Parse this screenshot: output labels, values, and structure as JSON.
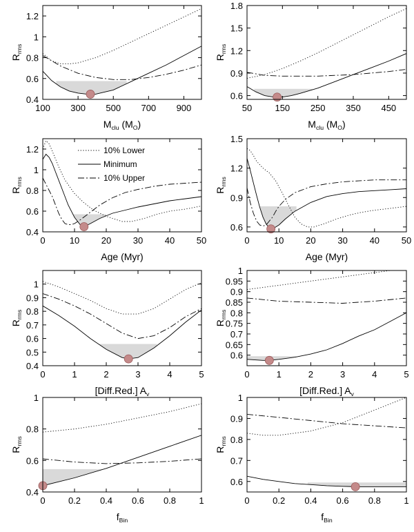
{
  "legend": {
    "entries": [
      {
        "label": "10% Lower",
        "style": "dotted"
      },
      {
        "label": "Minimum",
        "style": "solid"
      },
      {
        "label": "10% Upper",
        "style": "dashed"
      }
    ]
  },
  "colors": {
    "marker": "#c48a8a",
    "marker_edge": "#9a5a5a",
    "shade": "#d9d9d9",
    "axis": "#000000"
  },
  "chart_data": [
    {
      "type": "line",
      "xlabel": "M_clu (M_O)",
      "ylabel": "R_rms",
      "xlim": [
        100,
        1000
      ],
      "ylim": [
        0.4,
        1.3
      ],
      "xticks": [
        100,
        300,
        500,
        700,
        900
      ],
      "yticks": [
        0.4,
        0.6,
        0.8,
        1.0,
        1.2
      ],
      "xtick_labels": [
        "100",
        "300",
        "500",
        "700",
        "900"
      ],
      "ytick_labels": [
        "0.4",
        "0.6",
        "0.8",
        "1",
        "1.2"
      ],
      "series": [
        {
          "name": "10% Lower",
          "style": "dotted",
          "x": [
            100,
            150,
            200,
            250,
            300,
            400,
            500,
            600,
            700,
            800,
            900,
            1000
          ],
          "y": [
            0.84,
            0.77,
            0.74,
            0.74,
            0.75,
            0.8,
            0.87,
            0.95,
            1.03,
            1.11,
            1.19,
            1.27
          ]
        },
        {
          "name": "Minimum",
          "style": "solid",
          "x": [
            100,
            150,
            200,
            250,
            300,
            350,
            400,
            450,
            500,
            550,
            600,
            700,
            800,
            900,
            1000
          ],
          "y": [
            0.67,
            0.58,
            0.52,
            0.48,
            0.46,
            0.45,
            0.45,
            0.47,
            0.49,
            0.53,
            0.57,
            0.65,
            0.73,
            0.82,
            0.91
          ]
        },
        {
          "name": "10% Upper",
          "style": "dashed",
          "x": [
            100,
            200,
            300,
            400,
            500,
            600,
            700,
            800,
            900,
            1000
          ],
          "y": [
            0.82,
            0.72,
            0.65,
            0.61,
            0.59,
            0.59,
            0.61,
            0.64,
            0.68,
            0.73
          ]
        }
      ],
      "best_fit": {
        "x": 370,
        "y": 0.45
      },
      "shade": {
        "level": 0.575,
        "x_from": 176,
        "x_to": 576
      }
    },
    {
      "type": "line",
      "xlabel": "M_clu (M_O)",
      "ylabel": "R_rms",
      "xlim": [
        50,
        500
      ],
      "ylim": [
        0.55,
        1.8
      ],
      "xticks": [
        50,
        150,
        250,
        350,
        450
      ],
      "yticks": [
        0.6,
        0.9,
        1.2,
        1.5,
        1.8
      ],
      "xtick_labels": [
        "50",
        "150",
        "250",
        "350",
        "450"
      ],
      "ytick_labels": [
        "0.6",
        "0.9",
        "1.2",
        "1.5",
        "1.8"
      ],
      "series": [
        {
          "name": "10% Lower",
          "style": "dotted",
          "x": [
            50,
            100,
            150,
            200,
            250,
            300,
            350,
            400,
            450,
            500
          ],
          "y": [
            0.83,
            0.88,
            0.96,
            1.06,
            1.17,
            1.29,
            1.41,
            1.53,
            1.65,
            1.76
          ]
        },
        {
          "name": "Minimum",
          "style": "solid",
          "x": [
            50,
            75,
            100,
            125,
            150,
            175,
            200,
            250,
            300,
            350,
            400,
            450,
            500
          ],
          "y": [
            0.72,
            0.65,
            0.6,
            0.58,
            0.58,
            0.6,
            0.63,
            0.7,
            0.79,
            0.88,
            0.97,
            1.06,
            1.16
          ]
        },
        {
          "name": "10% Upper",
          "style": "dashed",
          "x": [
            50,
            100,
            150,
            200,
            250,
            300,
            350,
            400,
            450,
            500
          ],
          "y": [
            0.91,
            0.87,
            0.86,
            0.86,
            0.86,
            0.87,
            0.88,
            0.9,
            0.92,
            0.95
          ]
        }
      ],
      "best_fit": {
        "x": 135,
        "y": 0.58
      },
      "shade": {
        "level": 0.69,
        "x_from": 70,
        "x_to": 235
      }
    },
    {
      "type": "line",
      "xlabel": "Age (Myr)",
      "ylabel": "R_rms",
      "xlim": [
        0,
        50
      ],
      "ylim": [
        0.4,
        1.3
      ],
      "xticks": [
        0,
        10,
        20,
        30,
        40,
        50
      ],
      "yticks": [
        0.4,
        0.6,
        0.8,
        1.0,
        1.2
      ],
      "xtick_labels": [
        "0",
        "10",
        "20",
        "30",
        "40",
        "50"
      ],
      "ytick_labels": [
        "0.4",
        "0.6",
        "0.8",
        "1",
        "1.2"
      ],
      "series": [
        {
          "name": "10% Lower",
          "style": "dotted",
          "x": [
            0,
            1,
            2,
            3,
            5,
            7,
            10,
            13,
            16,
            20,
            25,
            28,
            32,
            36,
            40,
            45,
            50
          ],
          "y": [
            1.2,
            1.28,
            1.25,
            1.18,
            1.03,
            0.9,
            0.77,
            0.68,
            0.61,
            0.55,
            0.5,
            0.5,
            0.53,
            0.57,
            0.6,
            0.62,
            0.65
          ]
        },
        {
          "name": "Minimum",
          "style": "solid",
          "x": [
            0,
            1,
            2,
            3,
            4,
            6,
            8,
            10,
            12,
            13,
            15,
            18,
            22,
            26,
            30,
            35,
            40,
            45,
            50
          ],
          "y": [
            1.1,
            1.15,
            1.12,
            1.06,
            0.98,
            0.82,
            0.66,
            0.54,
            0.46,
            0.45,
            0.48,
            0.53,
            0.58,
            0.61,
            0.64,
            0.67,
            0.7,
            0.72,
            0.74
          ]
        },
        {
          "name": "10% Upper",
          "style": "dashed",
          "x": [
            0,
            1,
            2,
            3,
            4,
            5,
            6,
            7,
            8,
            9,
            10,
            12,
            15,
            18,
            22,
            26,
            30,
            35,
            40,
            45,
            50
          ],
          "y": [
            0.92,
            0.86,
            0.8,
            0.74,
            0.66,
            0.58,
            0.52,
            0.48,
            0.47,
            0.47,
            0.48,
            0.52,
            0.59,
            0.66,
            0.73,
            0.78,
            0.81,
            0.84,
            0.86,
            0.87,
            0.88
          ]
        }
      ],
      "best_fit": {
        "x": 13,
        "y": 0.45
      },
      "shade": {
        "level": 0.57,
        "x_from": 9.6,
        "x_to": 20
      }
    },
    {
      "type": "line",
      "xlabel": "Age (Myr)",
      "ylabel": "R_rms",
      "xlim": [
        0,
        50
      ],
      "ylim": [
        0.55,
        1.5
      ],
      "xticks": [
        0,
        10,
        20,
        30,
        40,
        50
      ],
      "yticks": [
        0.6,
        0.9,
        1.2,
        1.5
      ],
      "xtick_labels": [
        "0",
        "10",
        "20",
        "30",
        "40",
        "50"
      ],
      "ytick_labels": [
        "0.6",
        "0.9",
        "1.2",
        "1.5"
      ],
      "series": [
        {
          "name": "10% Lower",
          "style": "dotted",
          "x": [
            0,
            1,
            2,
            3,
            5,
            7,
            9,
            11,
            13,
            15,
            17,
            19,
            21,
            24,
            28,
            32,
            36,
            40,
            45,
            50
          ],
          "y": [
            1.4,
            1.38,
            1.33,
            1.27,
            1.2,
            1.15,
            1.07,
            0.95,
            0.82,
            0.7,
            0.63,
            0.6,
            0.6,
            0.63,
            0.68,
            0.72,
            0.75,
            0.77,
            0.79,
            0.81
          ]
        },
        {
          "name": "Minimum",
          "style": "solid",
          "x": [
            0,
            1,
            2,
            3,
            4,
            5,
            6,
            7,
            8,
            10,
            12,
            15,
            20,
            25,
            30,
            35,
            40,
            45,
            50
          ],
          "y": [
            1.3,
            1.18,
            1.05,
            0.92,
            0.8,
            0.7,
            0.63,
            0.59,
            0.58,
            0.62,
            0.68,
            0.76,
            0.85,
            0.91,
            0.94,
            0.96,
            0.97,
            0.98,
            0.99
          ]
        },
        {
          "name": "10% Upper",
          "style": "dashed",
          "x": [
            0,
            1,
            2,
            3,
            4,
            5,
            6,
            7,
            8,
            9,
            10,
            12,
            15,
            20,
            25,
            30,
            35,
            40,
            45,
            50
          ],
          "y": [
            1.0,
            0.85,
            0.74,
            0.66,
            0.62,
            0.61,
            0.62,
            0.66,
            0.7,
            0.76,
            0.81,
            0.88,
            0.95,
            1.01,
            1.04,
            1.06,
            1.07,
            1.08,
            1.08,
            1.08
          ]
        }
      ],
      "best_fit": {
        "x": 7.5,
        "y": 0.58
      },
      "shade": {
        "level": 0.81,
        "x_from": 4,
        "x_to": 15.5
      }
    },
    {
      "type": "line",
      "xlabel": "[Diff.Red.] A_v",
      "ylabel": "R_rms",
      "xlim": [
        0,
        5
      ],
      "ylim": [
        0.4,
        1.1
      ],
      "xticks": [
        0,
        1,
        2,
        3,
        4,
        5
      ],
      "yticks": [
        0.4,
        0.5,
        0.6,
        0.7,
        0.8,
        0.9,
        1.0
      ],
      "xtick_labels": [
        "0",
        "1",
        "2",
        "3",
        "4",
        "5"
      ],
      "ytick_labels": [
        "0.4",
        "0.5",
        "0.6",
        "0.7",
        "0.8",
        "0.9",
        "1"
      ],
      "series": [
        {
          "name": "10% Lower",
          "style": "dotted",
          "x": [
            0,
            0.5,
            1,
            1.5,
            2,
            2.5,
            3,
            3.5,
            4,
            4.5,
            5
          ],
          "y": [
            1.02,
            0.98,
            0.93,
            0.88,
            0.82,
            0.78,
            0.78,
            0.82,
            0.89,
            0.96,
            1.01
          ]
        },
        {
          "name": "Minimum",
          "style": "solid",
          "x": [
            0,
            0.5,
            1,
            1.5,
            2,
            2.5,
            2.7,
            3,
            3.5,
            4,
            4.5,
            5
          ],
          "y": [
            0.84,
            0.77,
            0.69,
            0.6,
            0.52,
            0.46,
            0.45,
            0.46,
            0.53,
            0.62,
            0.72,
            0.81
          ]
        },
        {
          "name": "10% Upper",
          "style": "dashed",
          "x": [
            0,
            0.5,
            1,
            1.5,
            2,
            2.5,
            3,
            3.5,
            4,
            4.5,
            5
          ],
          "y": [
            0.93,
            0.89,
            0.84,
            0.78,
            0.71,
            0.64,
            0.6,
            0.62,
            0.68,
            0.76,
            0.82
          ]
        }
      ],
      "best_fit": {
        "x": 2.7,
        "y": 0.45
      },
      "shade": {
        "level": 0.56,
        "x_from": 1.7,
        "x_to": 3.6
      }
    },
    {
      "type": "line",
      "xlabel": "[Diff.Red.] A_v",
      "ylabel": "R_rms",
      "xlim": [
        0,
        5
      ],
      "ylim": [
        0.55,
        1.0
      ],
      "xticks": [
        0,
        1,
        2,
        3,
        4,
        5
      ],
      "yticks": [
        0.6,
        0.65,
        0.7,
        0.75,
        0.8,
        0.85,
        0.9,
        0.95,
        1.0
      ],
      "xtick_labels": [
        "0",
        "1",
        "2",
        "3",
        "4",
        "5"
      ],
      "ytick_labels": [
        "0.6",
        "0.65",
        "0.7",
        "0.75",
        "0.8",
        "0.85",
        "0.9",
        "0.95",
        "1"
      ],
      "series": [
        {
          "name": "10% Lower",
          "style": "dotted",
          "x": [
            0,
            1,
            2,
            3,
            4,
            5
          ],
          "y": [
            0.91,
            0.93,
            0.95,
            0.97,
            0.99,
            1.01
          ]
        },
        {
          "name": "Minimum",
          "style": "solid",
          "x": [
            0,
            0.5,
            0.7,
            1,
            1.5,
            2,
            2.5,
            3,
            3.5,
            4,
            4.5,
            5
          ],
          "y": [
            0.58,
            0.575,
            0.575,
            0.58,
            0.59,
            0.605,
            0.625,
            0.655,
            0.69,
            0.72,
            0.76,
            0.8
          ]
        },
        {
          "name": "10% Upper",
          "style": "dashed",
          "x": [
            0,
            1,
            2,
            3,
            4,
            5
          ],
          "y": [
            0.87,
            0.855,
            0.85,
            0.845,
            0.855,
            0.87
          ]
        }
      ],
      "best_fit": {
        "x": 0.7,
        "y": 0.575
      },
      "shade": {
        "level": 0.595,
        "x_from": 0,
        "x_to": 1.55
      }
    },
    {
      "type": "line",
      "xlabel": "f_Bin",
      "ylabel": "R_rms",
      "xlim": [
        0,
        1
      ],
      "ylim": [
        0.4,
        1.0
      ],
      "xticks": [
        0,
        0.2,
        0.4,
        0.6,
        0.8,
        1.0
      ],
      "yticks": [
        0.4,
        0.6,
        0.8,
        1.0
      ],
      "xtick_labels": [
        "0",
        "0.2",
        "0.4",
        "0.6",
        "0.8",
        "1"
      ],
      "ytick_labels": [
        "0.4",
        "0.6",
        "0.8",
        "1"
      ],
      "series": [
        {
          "name": "10% Lower",
          "style": "dotted",
          "x": [
            0,
            0.2,
            0.4,
            0.6,
            0.8,
            1.0
          ],
          "y": [
            0.78,
            0.8,
            0.83,
            0.87,
            0.91,
            0.96
          ]
        },
        {
          "name": "Minimum",
          "style": "solid",
          "x": [
            0,
            0.2,
            0.4,
            0.6,
            0.8,
            1.0
          ],
          "y": [
            0.44,
            0.49,
            0.55,
            0.62,
            0.69,
            0.76
          ]
        },
        {
          "name": "10% Upper",
          "style": "dashed",
          "x": [
            0,
            0.2,
            0.4,
            0.6,
            0.8,
            1.0
          ],
          "y": [
            0.61,
            0.59,
            0.58,
            0.585,
            0.595,
            0.61
          ]
        }
      ],
      "best_fit": {
        "x": 0,
        "y": 0.44
      },
      "shade": {
        "level": 0.545,
        "x_from": 0,
        "x_to": 0.38
      }
    },
    {
      "type": "line",
      "xlabel": "f_Bin",
      "ylabel": "R_rms",
      "xlim": [
        0,
        1
      ],
      "ylim": [
        0.55,
        1.0
      ],
      "xticks": [
        0,
        0.2,
        0.4,
        0.6,
        0.8,
        1.0
      ],
      "yticks": [
        0.6,
        0.7,
        0.8,
        0.9,
        1.0
      ],
      "xtick_labels": [
        "0",
        "0.2",
        "0.4",
        "0.6",
        "0.8",
        "1"
      ],
      "ytick_labels": [
        "0.6",
        "0.7",
        "0.8",
        "0.9",
        "1"
      ],
      "series": [
        {
          "name": "10% Lower",
          "style": "dotted",
          "x": [
            0,
            0.1,
            0.2,
            0.3,
            0.4,
            0.5,
            0.6,
            0.7,
            0.8,
            0.9,
            1.0
          ],
          "y": [
            0.83,
            0.82,
            0.82,
            0.83,
            0.84,
            0.86,
            0.88,
            0.91,
            0.94,
            0.97,
            1.0
          ]
        },
        {
          "name": "Minimum",
          "style": "solid",
          "x": [
            0,
            0.1,
            0.2,
            0.3,
            0.4,
            0.5,
            0.6,
            0.7,
            0.8,
            0.9,
            1.0
          ],
          "y": [
            0.625,
            0.61,
            0.6,
            0.59,
            0.585,
            0.58,
            0.577,
            0.575,
            0.575,
            0.575,
            0.575
          ]
        },
        {
          "name": "10% Upper",
          "style": "dashed",
          "x": [
            0,
            0.2,
            0.4,
            0.6,
            0.8,
            1.0
          ],
          "y": [
            0.92,
            0.905,
            0.89,
            0.875,
            0.865,
            0.855
          ]
        }
      ],
      "best_fit": {
        "x": 0.68,
        "y": 0.575
      },
      "shade": {
        "level": 0.595,
        "x_from": 0.38,
        "x_to": 1.0
      }
    }
  ]
}
